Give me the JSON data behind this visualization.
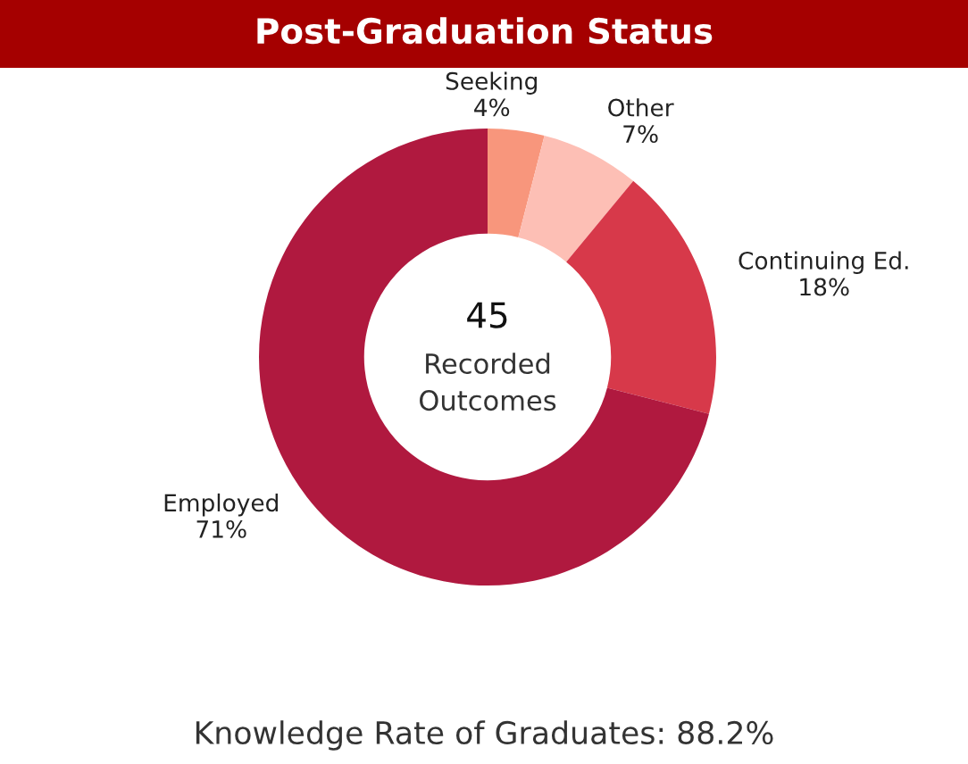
{
  "chart_data": {
    "type": "donut",
    "title": "Post-Graduation Status",
    "categories": [
      "Seeking",
      "Other",
      "Continuing Ed.",
      "Employed"
    ],
    "values": [
      4,
      7,
      18,
      71
    ],
    "colors": [
      "#f8967c",
      "#fdbfb5",
      "#d7394a",
      "#b0193f"
    ],
    "value_labels": [
      "4%",
      "7%",
      "18%",
      "71%"
    ],
    "annotations": [
      "45",
      "Recorded\nOutcomes",
      "Knowledge Rate of Graduates: 88.2%"
    ],
    "legend": false
  }
}
